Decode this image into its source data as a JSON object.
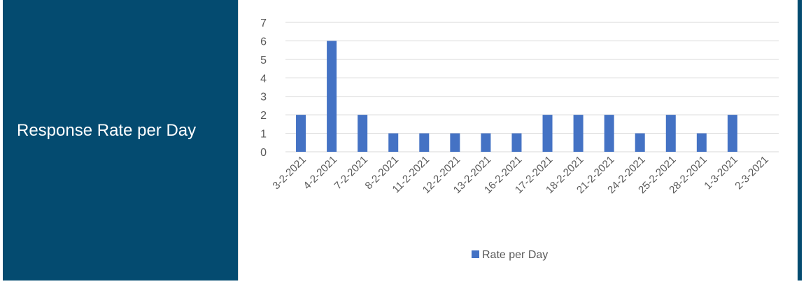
{
  "panel": {
    "title": "Response Rate per Day"
  },
  "colors": {
    "panel_bg": "#044b70",
    "bar": "#4472c4",
    "grid": "#d9d9d9",
    "text": "#595959"
  },
  "chart_data": {
    "type": "bar",
    "categories": [
      "3-2-2021",
      "4-2-2021",
      "7-2-2021",
      "8-2-2021",
      "11-2-2021",
      "12-2-2021",
      "13-2-2021",
      "16-2-2021",
      "17-2-2021",
      "18-2-2021",
      "21-2-2021",
      "24-2-2021",
      "25-2-2021",
      "28-2-2021",
      "1-3-2021",
      "2-3-2021"
    ],
    "series": [
      {
        "name": "Rate per Day",
        "values": [
          2,
          6,
          2,
          1,
          1,
          1,
          1,
          1,
          2,
          2,
          2,
          1,
          2,
          1,
          2,
          0
        ]
      }
    ],
    "yticks": [
      0,
      1,
      2,
      3,
      4,
      5,
      6,
      7
    ],
    "ylim": [
      0,
      7
    ],
    "grid": true,
    "legend": "bottom"
  }
}
